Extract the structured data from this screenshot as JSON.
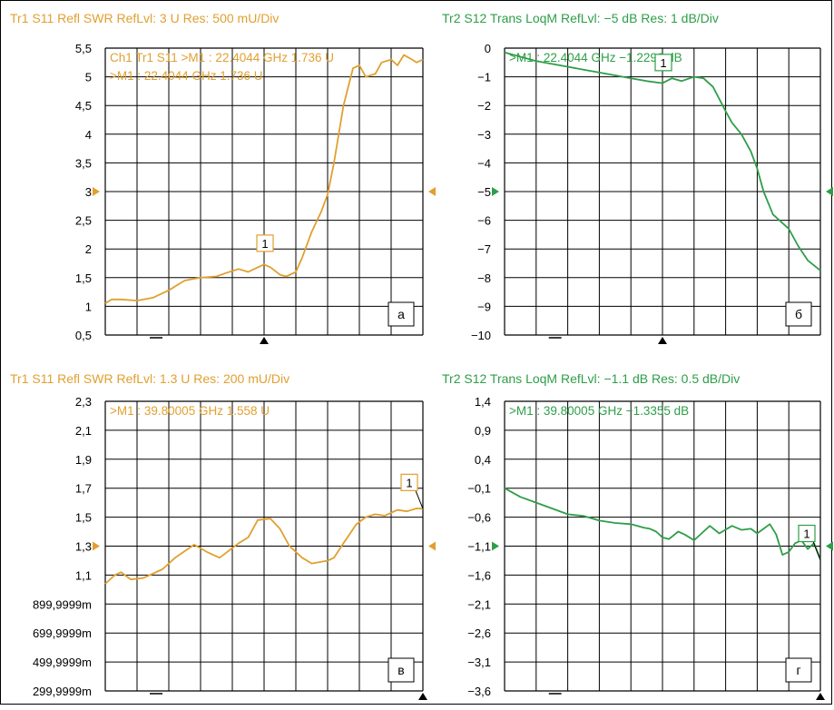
{
  "colors": {
    "orange": "#E0A030",
    "green": "#2E9E48",
    "grid": "#000000"
  },
  "panels": [
    {
      "id": "a",
      "title": "Tr1  S11 Refl SWR RefLvl: 3 U Res: 500 mU/Div",
      "marker_lines": [
        "Ch1 Tr1  S11  >M1 : 22.4044 GHz 1.736 U",
        ">M1 : 22.4044 GHz 1.736 U"
      ],
      "corner_label": "а",
      "marker_id": "1",
      "color_key": "orange",
      "ref_level_tick": "3",
      "chart_data": {
        "type": "line",
        "title": "Tr1  S11 Refl SWR RefLvl: 3 U Res: 500 mU/Div",
        "ylim": [
          0.5,
          5.5
        ],
        "yticks": [
          "5,5",
          "5",
          "4,5",
          "4",
          "3,5",
          "3",
          "2,5",
          "2",
          "1,5",
          "1",
          "0,5"
        ],
        "x": [
          0,
          0.02,
          0.05,
          0.1,
          0.15,
          0.2,
          0.25,
          0.3,
          0.35,
          0.38,
          0.42,
          0.45,
          0.48,
          0.5,
          0.52,
          0.55,
          0.57,
          0.6,
          0.62,
          0.65,
          0.68,
          0.7,
          0.72,
          0.75,
          0.78,
          0.8,
          0.82,
          0.85,
          0.87,
          0.9,
          0.92,
          0.94,
          0.96,
          0.98,
          1.0
        ],
        "series": [
          {
            "values": [
              1.05,
              1.12,
              1.12,
              1.1,
              1.15,
              1.28,
              1.45,
              1.5,
              1.52,
              1.58,
              1.65,
              1.6,
              1.68,
              1.73,
              1.68,
              1.55,
              1.52,
              1.6,
              1.85,
              2.3,
              2.65,
              2.95,
              3.5,
              4.5,
              5.15,
              5.2,
              5.0,
              5.05,
              5.25,
              5.3,
              5.2,
              5.38,
              5.32,
              5.25,
              5.3
            ]
          }
        ],
        "marker_x": 0.5,
        "marker_y": 1.736
      }
    },
    {
      "id": "b",
      "title": "Tr2  S12 Trans LoqM RefLvl: −5 dB Res: 1 dB/Div",
      "marker_lines": [
        ">M1 : 22.4044 GHz −1.2296 dB"
      ],
      "corner_label": "б",
      "marker_id": "1",
      "color_key": "green",
      "ref_level_tick": "−5",
      "chart_data": {
        "type": "line",
        "title": "Tr2  S12 Trans LoqM RefLvl: −5 dB Res: 1 dB/Div",
        "ylim": [
          -10,
          0
        ],
        "yticks": [
          "0",
          "−1",
          "−2",
          "−3",
          "−4",
          "−5",
          "−6",
          "−7",
          "−8",
          "−9",
          "−10"
        ],
        "x": [
          0,
          0.05,
          0.1,
          0.15,
          0.2,
          0.25,
          0.3,
          0.35,
          0.4,
          0.45,
          0.5,
          0.53,
          0.56,
          0.6,
          0.63,
          0.66,
          0.7,
          0.72,
          0.75,
          0.78,
          0.8,
          0.82,
          0.85,
          0.87,
          0.9,
          0.93,
          0.96,
          1.0
        ],
        "series": [
          {
            "values": [
              -0.15,
              -0.3,
              -0.45,
              -0.55,
              -0.65,
              -0.75,
              -0.85,
              -0.95,
              -1.05,
              -1.15,
              -1.22,
              -1.05,
              -1.15,
              -1.0,
              -1.05,
              -1.35,
              -2.2,
              -2.6,
              -3.0,
              -3.6,
              -4.2,
              -5.0,
              -5.8,
              -6.0,
              -6.3,
              -6.9,
              -7.4,
              -7.75
            ]
          }
        ],
        "marker_x": 0.5,
        "marker_y": -1.2296
      }
    },
    {
      "id": "c",
      "title": "Tr1  S11 Refl SWR RefLvl: 1.3 U Res: 200 mU/Div",
      "marker_lines": [
        ">M1 : 39.80005 GHz 1.558 U"
      ],
      "corner_label": "в",
      "marker_id": "1",
      "color_key": "orange",
      "ref_level_tick": "1,3",
      "chart_data": {
        "type": "line",
        "title": "Tr1  S11 Refl SWR RefLvl: 1.3 U Res: 200 mU/Div",
        "ylim": [
          0.3,
          2.3
        ],
        "yticks": [
          "2,3",
          "2,1",
          "1,9",
          "1,7",
          "1,5",
          "1,3",
          "1,1",
          "899,9999m",
          "699,9999m",
          "499,9999m",
          "299,9999m"
        ],
        "x": [
          0,
          0.03,
          0.05,
          0.08,
          0.12,
          0.18,
          0.22,
          0.28,
          0.32,
          0.36,
          0.42,
          0.45,
          0.48,
          0.52,
          0.55,
          0.58,
          0.62,
          0.65,
          0.7,
          0.72,
          0.75,
          0.79,
          0.82,
          0.85,
          0.88,
          0.92,
          0.95,
          0.98,
          1.0
        ],
        "series": [
          {
            "values": [
              1.04,
              1.1,
              1.12,
              1.07,
              1.08,
              1.14,
              1.22,
              1.31,
              1.26,
              1.22,
              1.32,
              1.36,
              1.48,
              1.49,
              1.42,
              1.3,
              1.22,
              1.18,
              1.2,
              1.22,
              1.32,
              1.45,
              1.5,
              1.52,
              1.51,
              1.55,
              1.54,
              1.56,
              1.558
            ]
          }
        ],
        "marker_x": 1.0,
        "marker_y": 1.558
      }
    },
    {
      "id": "d",
      "title": "Tr2  S12 Trans LoqM RefLvl: −1.1 dB Res: 0.5 dB/Div",
      "marker_lines": [
        ">M1 : 39.80005 GHz −1.3355 dB"
      ],
      "corner_label": "г",
      "marker_id": "1",
      "color_key": "green",
      "ref_level_tick": "−1,1",
      "chart_data": {
        "type": "line",
        "title": "Tr2  S12 Trans LoqM RefLvl: −1.1 dB Res: 0.5 dB/Div",
        "ylim": [
          -3.6,
          1.4
        ],
        "yticks": [
          "1,4",
          "0,9",
          "0,4",
          "−0,1",
          "−0,6",
          "−1,1",
          "−1,6",
          "−2,1",
          "−2,6",
          "−3,1",
          "−3,6"
        ],
        "x": [
          0,
          0.05,
          0.1,
          0.15,
          0.2,
          0.25,
          0.3,
          0.35,
          0.4,
          0.44,
          0.46,
          0.48,
          0.5,
          0.52,
          0.55,
          0.57,
          0.6,
          0.63,
          0.65,
          0.68,
          0.72,
          0.75,
          0.78,
          0.8,
          0.82,
          0.84,
          0.86,
          0.88,
          0.9,
          0.92,
          0.94,
          0.96,
          0.98,
          1.0
        ],
        "series": [
          {
            "values": [
              -0.1,
              -0.25,
              -0.35,
              -0.45,
              -0.55,
              -0.58,
              -0.66,
              -0.7,
              -0.72,
              -0.78,
              -0.8,
              -0.85,
              -0.95,
              -0.98,
              -0.85,
              -0.9,
              -1.0,
              -0.85,
              -0.75,
              -0.88,
              -0.75,
              -0.82,
              -0.8,
              -0.88,
              -0.8,
              -0.72,
              -0.9,
              -1.25,
              -1.2,
              -1.05,
              -1.0,
              -1.15,
              -1.05,
              -1.3355
            ]
          }
        ],
        "marker_x": 1.0,
        "marker_y": -1.3355
      }
    }
  ]
}
